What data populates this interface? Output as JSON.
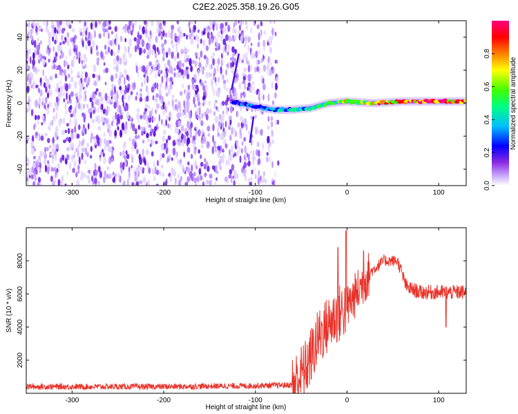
{
  "title": "C2E2.2025.358.19.26.G05",
  "chart_data": [
    {
      "type": "heatmap",
      "xlabel": "Height of straight line (km)",
      "ylabel": "Frequency (Hz)",
      "xlim": [
        -350,
        130
      ],
      "ylim": [
        -50,
        50
      ],
      "xticks": [
        -300,
        -200,
        -100,
        0,
        100
      ],
      "yticks": [
        -40,
        -20,
        0,
        20,
        40
      ],
      "colorbar": {
        "label": "Normalized spectral amplitude",
        "range": [
          0.0,
          1.0
        ],
        "ticks": [
          0.0,
          0.2,
          0.4,
          0.6,
          0.8
        ],
        "colormap": [
          "#ffffff",
          "#c9a8ff",
          "#8a2be2",
          "#0000ff",
          "#00bfff",
          "#00ff80",
          "#40ff00",
          "#ffff00",
          "#ff8000",
          "#ff0000",
          "#ff0080"
        ]
      },
      "noise_region_x": [
        -350,
        -75
      ],
      "signal_track": [
        {
          "x": -125,
          "y": 1
        },
        {
          "x": -100,
          "y": -2
        },
        {
          "x": -80,
          "y": -4
        },
        {
          "x": -60,
          "y": -4
        },
        {
          "x": -40,
          "y": -3
        },
        {
          "x": -20,
          "y": 0
        },
        {
          "x": 0,
          "y": 1
        },
        {
          "x": 30,
          "y": 0
        },
        {
          "x": 60,
          "y": 1
        },
        {
          "x": 100,
          "y": 1
        },
        {
          "x": 130,
          "y": 1
        }
      ]
    },
    {
      "type": "line",
      "xlabel": "Height of straight line (km)",
      "ylabel": "SNR (10 * v/v)",
      "xlim": [
        -350,
        130
      ],
      "ylim": [
        0,
        10000
      ],
      "xticks": [
        -300,
        -200,
        -100,
        0,
        100
      ],
      "yticks": [
        2000,
        4000,
        6000,
        8000
      ],
      "series": [
        {
          "name": "SNR",
          "color": "#e8332a",
          "envelope": [
            {
              "x": -350,
              "y": 400
            },
            {
              "x": -200,
              "y": 400
            },
            {
              "x": -110,
              "y": 450
            },
            {
              "x": -60,
              "y": 500
            },
            {
              "x": -45,
              "y": 1500
            },
            {
              "x": -30,
              "y": 3500
            },
            {
              "x": -15,
              "y": 4500
            },
            {
              "x": 0,
              "y": 5200
            },
            {
              "x": 10,
              "y": 6000
            },
            {
              "x": 25,
              "y": 7300
            },
            {
              "x": 40,
              "y": 8000
            },
            {
              "x": 55,
              "y": 8000
            },
            {
              "x": 60,
              "y": 7200
            },
            {
              "x": 65,
              "y": 6400
            },
            {
              "x": 80,
              "y": 6100
            },
            {
              "x": 100,
              "y": 6100
            },
            {
              "x": 130,
              "y": 6100
            }
          ],
          "peaks": [
            {
              "x": -1,
              "y": 9800
            },
            {
              "x": -10,
              "y": 8800
            },
            {
              "x": 18,
              "y": 8600
            },
            {
              "x": 108,
              "y": 4000
            }
          ]
        }
      ]
    }
  ]
}
